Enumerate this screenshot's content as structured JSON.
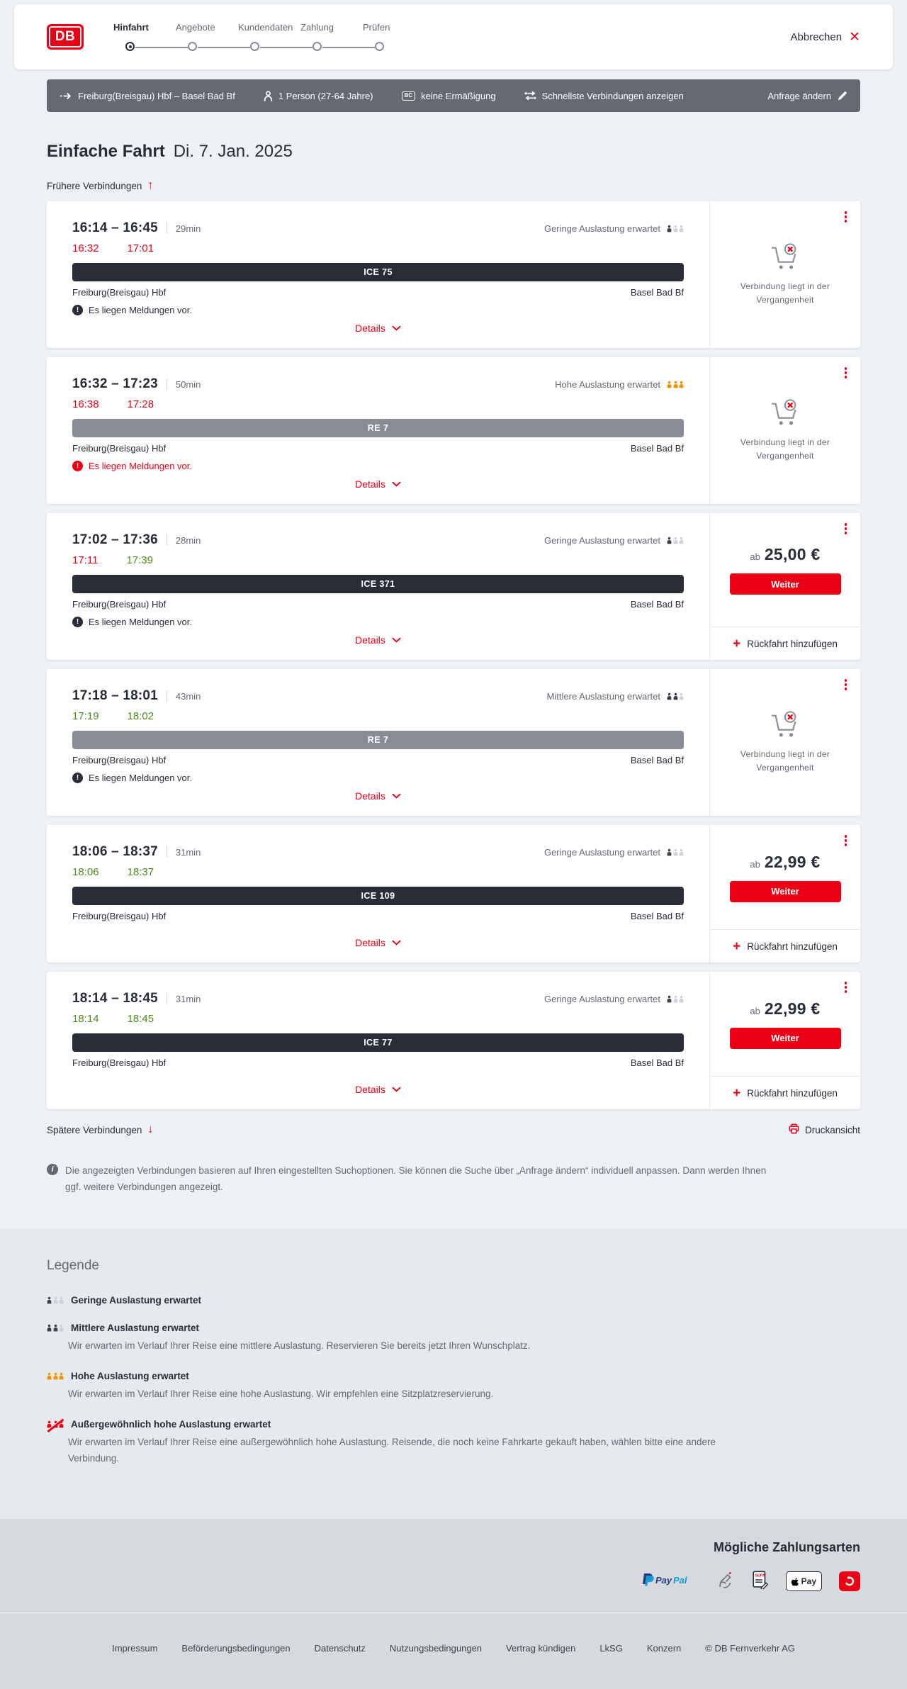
{
  "header": {
    "logo": "DB",
    "steps": [
      "Hinfahrt",
      "Angebote",
      "Kundendaten",
      "Zahlung",
      "Prüfen"
    ],
    "active_step": 0,
    "cancel_label": "Abbrechen"
  },
  "search_summary": {
    "route": "Freiburg(Breisgau) Hbf – Basel Bad Bf",
    "passengers": "1 Person (27-64 Jahre)",
    "discount": "keine Ermäßigung",
    "fastest": "Schnellste Verbindungen anzeigen",
    "change_label": "Anfrage ändern"
  },
  "results": {
    "title": "Einfache Fahrt",
    "date": "Di. 7. Jan. 2025",
    "earlier_label": "Frühere Verbindungen",
    "later_label": "Spätere Verbindungen",
    "print_label": "Druckansicht",
    "details_label": "Details",
    "price_prefix": "ab",
    "continue_label": "Weiter",
    "add_return_label": "Rückfahrt hinzufügen",
    "past_label": "Verbindung liegt in der Vergangenheit",
    "note": "Die angezeigten Verbindungen basieren auf Ihren eingestellten Suchoptionen. Sie können die Suche über „Anfrage ändern“ individuell anpassen. Dann werden Ihnen ggf. weitere Verbindungen angezeigt.",
    "connections": [
      {
        "depart": "16:14",
        "arrive": "16:45",
        "duration": "29min",
        "occupancy": "low",
        "occupancy_label": "Geringe Auslastung erwartet",
        "rt_depart": "16:32",
        "rt_depart_status": "late",
        "rt_arrive": "17:01",
        "rt_arrive_status": "late",
        "train": "ICE 75",
        "train_style": "ice",
        "from": "Freiburg(Breisgau) Hbf",
        "to": "Basel Bad Bf",
        "message": "Es liegen Meldungen vor.",
        "message_style": "dark",
        "panel": "past",
        "price": null
      },
      {
        "depart": "16:32",
        "arrive": "17:23",
        "duration": "50min",
        "occupancy": "high",
        "occupancy_label": "Hohe Auslastung erwartet",
        "rt_depart": "16:38",
        "rt_depart_status": "late",
        "rt_arrive": "17:28",
        "rt_arrive_status": "late",
        "train": "RE 7",
        "train_style": "re",
        "from": "Freiburg(Breisgau) Hbf",
        "to": "Basel Bad Bf",
        "message": "Es liegen Meldungen vor.",
        "message_style": "red",
        "panel": "past",
        "price": null
      },
      {
        "depart": "17:02",
        "arrive": "17:36",
        "duration": "28min",
        "occupancy": "low",
        "occupancy_label": "Geringe Auslastung erwartet",
        "rt_depart": "17:11",
        "rt_depart_status": "late",
        "rt_arrive": "17:39",
        "rt_arrive_status": "ontime",
        "train": "ICE 371",
        "train_style": "ice",
        "from": "Freiburg(Breisgau) Hbf",
        "to": "Basel Bad Bf",
        "message": "Es liegen Meldungen vor.",
        "message_style": "dark",
        "panel": "price",
        "price": "25,00 €"
      },
      {
        "depart": "17:18",
        "arrive": "18:01",
        "duration": "43min",
        "occupancy": "medium",
        "occupancy_label": "Mittlere Auslastung erwartet",
        "rt_depart": "17:19",
        "rt_depart_status": "ontime",
        "rt_arrive": "18:02",
        "rt_arrive_status": "ontime",
        "train": "RE 7",
        "train_style": "re",
        "from": "Freiburg(Breisgau) Hbf",
        "to": "Basel Bad Bf",
        "message": "Es liegen Meldungen vor.",
        "message_style": "dark",
        "panel": "past",
        "price": null
      },
      {
        "depart": "18:06",
        "arrive": "18:37",
        "duration": "31min",
        "occupancy": "low",
        "occupancy_label": "Geringe Auslastung erwartet",
        "rt_depart": "18:06",
        "rt_depart_status": "ontime",
        "rt_arrive": "18:37",
        "rt_arrive_status": "ontime",
        "train": "ICE 109",
        "train_style": "ice",
        "from": "Freiburg(Breisgau) Hbf",
        "to": "Basel Bad Bf",
        "message": null,
        "message_style": null,
        "panel": "price",
        "price": "22,99 €"
      },
      {
        "depart": "18:14",
        "arrive": "18:45",
        "duration": "31min",
        "occupancy": "low",
        "occupancy_label": "Geringe Auslastung erwartet",
        "rt_depart": "18:14",
        "rt_depart_status": "ontime",
        "rt_arrive": "18:45",
        "rt_arrive_status": "ontime",
        "train": "ICE 77",
        "train_style": "ice",
        "from": "Freiburg(Breisgau) Hbf",
        "to": "Basel Bad Bf",
        "message": null,
        "message_style": null,
        "panel": "price",
        "price": "22,99 €"
      }
    ]
  },
  "legend": {
    "title": "Legende",
    "items": [
      {
        "icon": "low",
        "label": "Geringe Auslastung erwartet",
        "description": ""
      },
      {
        "icon": "medium",
        "label": "Mittlere Auslastung erwartet",
        "description": "Wir erwarten im Verlauf Ihrer Reise eine mittlere Auslastung. Reservieren Sie bereits jetzt Ihren Wunschplatz."
      },
      {
        "icon": "high",
        "label": "Hohe Auslastung erwartet",
        "description": "Wir erwarten im Verlauf Ihrer Reise eine hohe Auslastung. Wir empfehlen eine Sitzplatzreservierung."
      },
      {
        "icon": "veryhigh",
        "label": "Außergewöhnlich hohe Auslastung erwartet",
        "description": "Wir erwarten im Verlauf Ihrer Reise eine außergewöhnlich hohe Auslastung. Reisende, die noch keine Fahrkarte gekauft haben, wählen bitte eine andere Verbindung."
      }
    ]
  },
  "payment": {
    "title": "Mögliche Zahlungsarten",
    "methods": [
      "PayPal",
      "Lastschrift",
      "SEPA-Lastschrift",
      "Apple Pay",
      "Gutschein"
    ]
  },
  "footer": {
    "links": [
      "Impressum",
      "Beförderungsbedingungen",
      "Datenschutz",
      "Nutzungsbedingungen",
      "Vertrag kündigen",
      "LkSG",
      "Konzern"
    ],
    "copyright": "© DB Fernverkehr AG"
  },
  "colors": {
    "db_red": "#ec0016",
    "dark_text": "#282d37",
    "gray_text": "#646973",
    "green_ontime": "#508b1b",
    "orange_occupancy": "#f39200",
    "ice_bar": "#282d37",
    "re_bar": "#878c96",
    "querybar_bg": "#646973",
    "page_bg": "#eef1f5",
    "legend_bg": "#e6e9ed",
    "bottom_bg": "#d6dade"
  }
}
